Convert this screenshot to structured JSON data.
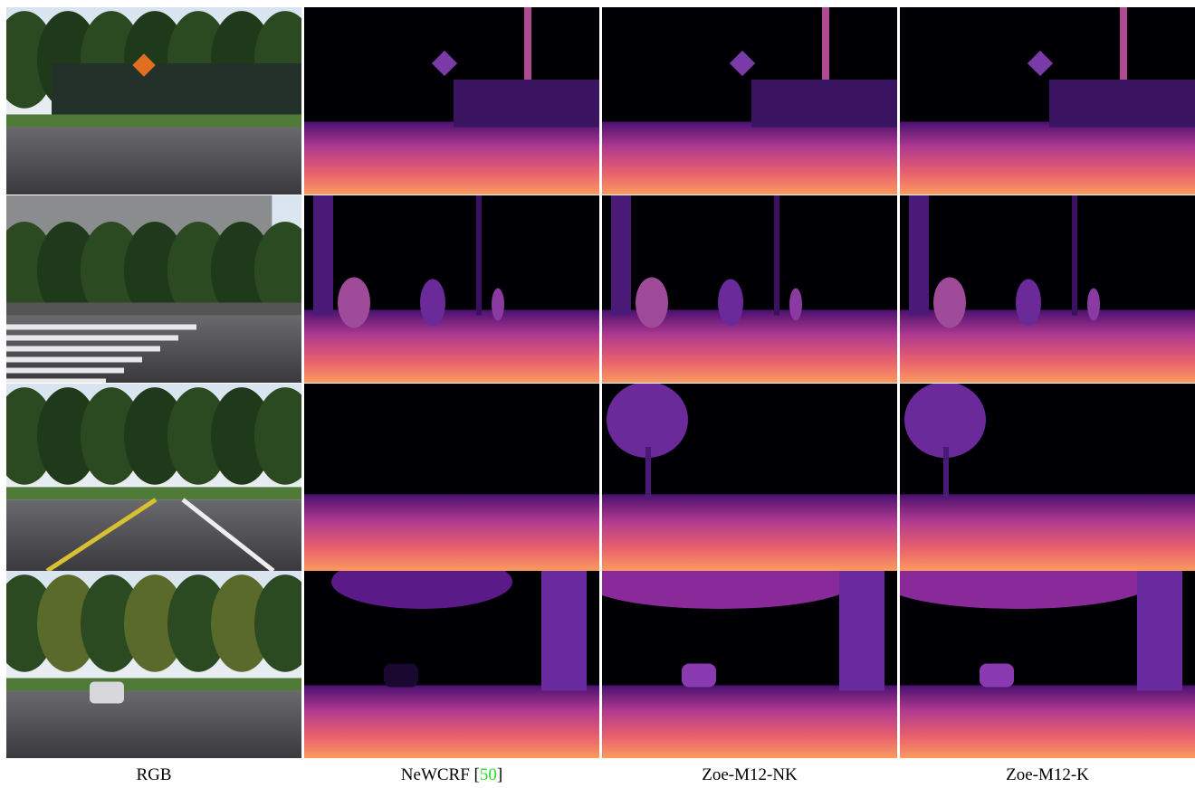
{
  "figure": {
    "columns": [
      {
        "label": "RGB"
      },
      {
        "label": "NeWCRF [",
        "citation": "50",
        "label_end": "]"
      },
      {
        "label": "Zoe-M12-NK"
      },
      {
        "label": "Zoe-M12-K"
      }
    ]
  }
}
